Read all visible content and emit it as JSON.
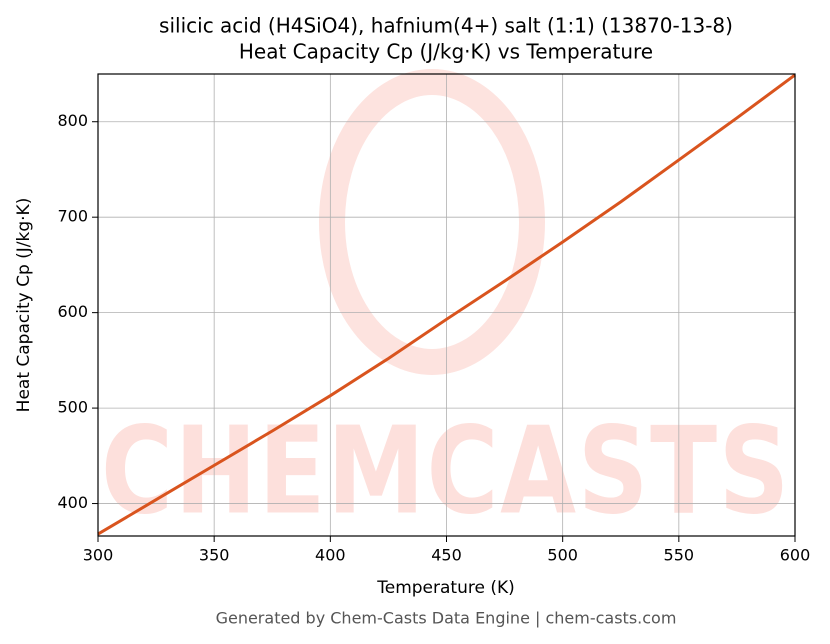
{
  "chart_data": {
    "type": "line",
    "title": "silicic acid (H4SiO4), hafnium(4+) salt (1:1) (13870-13-8)",
    "subtitle": "Heat Capacity Cp (J/kg·K) vs Temperature",
    "x_label": "Temperature (K)",
    "y_label": "Heat Capacity Cp (J/kg·K)",
    "watermark": "CHEMCASTS",
    "footer": "Generated by Chem-Casts Data Engine | chem-casts.com",
    "x": [
      300,
      325,
      350,
      375,
      400,
      425,
      450,
      475,
      500,
      525,
      550,
      575,
      600
    ],
    "series": [
      {
        "name": "Heat Capacity Cp",
        "color": "#d9541e",
        "values": [
          368,
          404,
          440,
          476,
          513,
          552,
          593,
          633,
          674,
          716,
          760,
          804,
          849
        ]
      }
    ],
    "xlim": [
      300,
      600
    ],
    "ylim": [
      366,
      850
    ],
    "xticks": [
      300,
      350,
      400,
      450,
      500,
      550,
      600
    ],
    "yticks": [
      400,
      500,
      600,
      700,
      800
    ],
    "grid": true
  }
}
